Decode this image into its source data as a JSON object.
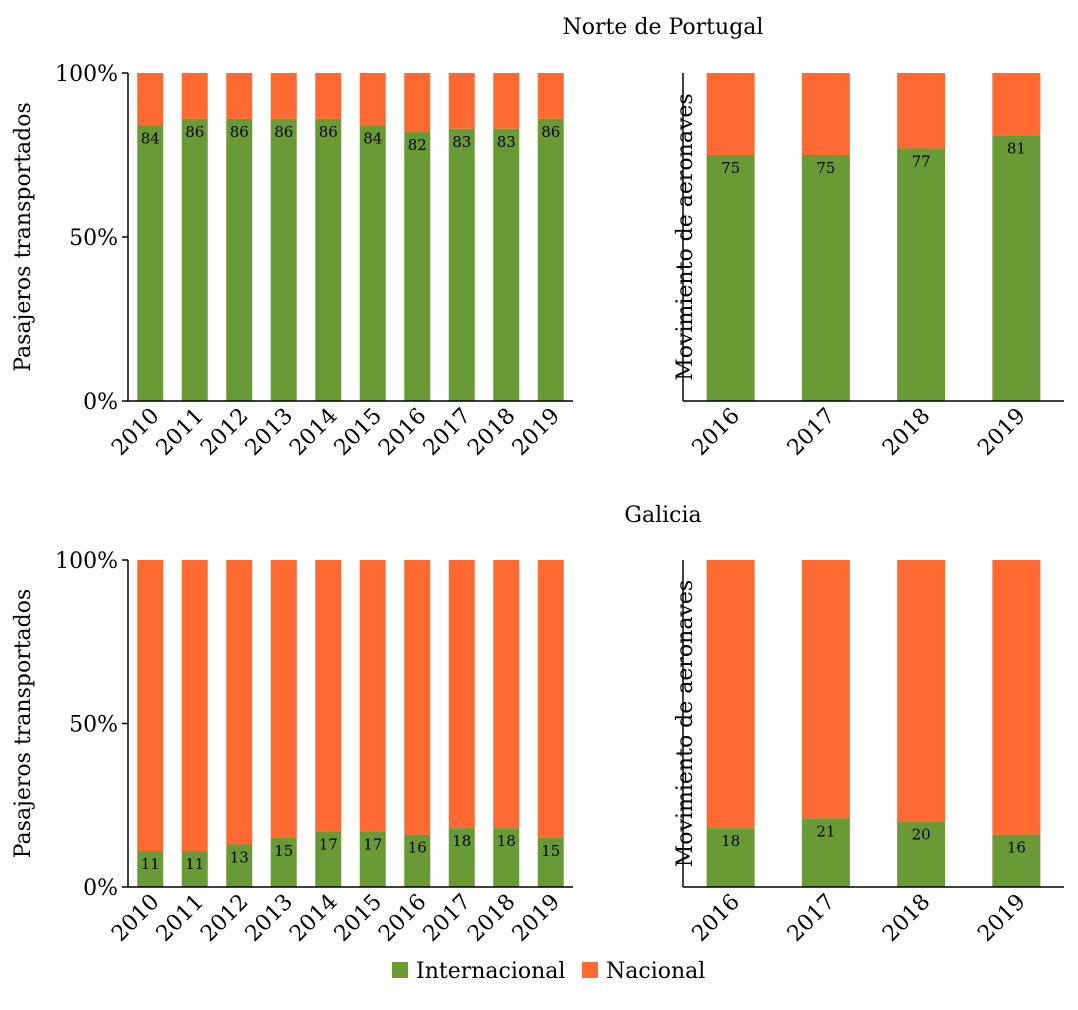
{
  "colors": {
    "internacional": "#6a9a35",
    "nacional": "#ff6a33",
    "axis": "#000000"
  },
  "legend": {
    "internacional": "Internacional",
    "nacional": "Nacional"
  },
  "sections": [
    {
      "title": "Norte de Portugal"
    },
    {
      "title": "Galicia"
    }
  ],
  "chart_data": [
    {
      "type": "bar",
      "stacked": true,
      "percent": true,
      "region": "Norte de Portugal",
      "ylabel": "Pasajeros transportados",
      "yticks": [
        "0%",
        "50%",
        "100%"
      ],
      "ylim": [
        0,
        100
      ],
      "categories": [
        "2010",
        "2011",
        "2012",
        "2013",
        "2014",
        "2015",
        "2016",
        "2017",
        "2018",
        "2019"
      ],
      "series": [
        {
          "name": "Internacional",
          "values": [
            84,
            86,
            86,
            86,
            86,
            84,
            82,
            83,
            83,
            86
          ]
        },
        {
          "name": "Nacional",
          "values": [
            16,
            14,
            14,
            14,
            14,
            16,
            18,
            17,
            17,
            14
          ]
        }
      ]
    },
    {
      "type": "bar",
      "stacked": true,
      "percent": true,
      "region": "Norte de Portugal",
      "ylabel": "Movimiento de aeronaves",
      "ylim": [
        0,
        100
      ],
      "categories": [
        "2016",
        "2017",
        "2018",
        "2019"
      ],
      "series": [
        {
          "name": "Internacional",
          "values": [
            75,
            75,
            77,
            81
          ]
        },
        {
          "name": "Nacional",
          "values": [
            25,
            25,
            23,
            19
          ]
        }
      ]
    },
    {
      "type": "bar",
      "stacked": true,
      "percent": true,
      "region": "Galicia",
      "ylabel": "Pasajeros transportados",
      "yticks": [
        "0%",
        "50%",
        "100%"
      ],
      "ylim": [
        0,
        100
      ],
      "categories": [
        "2010",
        "2011",
        "2012",
        "2013",
        "2014",
        "2015",
        "2016",
        "2017",
        "2018",
        "2019"
      ],
      "series": [
        {
          "name": "Internacional",
          "values": [
            11,
            11,
            13,
            15,
            17,
            17,
            16,
            18,
            18,
            15
          ]
        },
        {
          "name": "Nacional",
          "values": [
            89,
            89,
            87,
            85,
            83,
            83,
            84,
            82,
            82,
            85
          ]
        }
      ]
    },
    {
      "type": "bar",
      "stacked": true,
      "percent": true,
      "region": "Galicia",
      "ylabel": "Movimiento de aeronaves",
      "ylim": [
        0,
        100
      ],
      "categories": [
        "2016",
        "2017",
        "2018",
        "2019"
      ],
      "series": [
        {
          "name": "Internacional",
          "values": [
            18,
            21,
            20,
            16
          ]
        },
        {
          "name": "Nacional",
          "values": [
            82,
            79,
            80,
            84
          ]
        }
      ]
    }
  ]
}
